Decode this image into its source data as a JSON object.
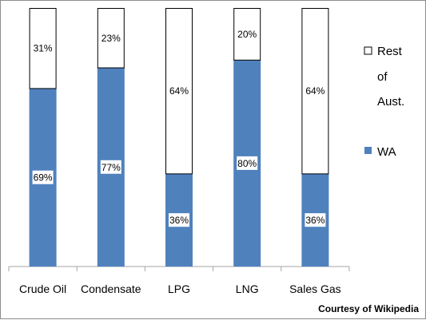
{
  "chart_data": {
    "type": "bar",
    "stacked": true,
    "percent_stacked": true,
    "categories": [
      "Crude Oil",
      "Condensate",
      "LPG",
      "LNG",
      "Sales Gas"
    ],
    "series": [
      {
        "name": "WA",
        "values": [
          69,
          77,
          36,
          80,
          36
        ],
        "labels": [
          "69%",
          "77%",
          "36%",
          "80%",
          "36%"
        ]
      },
      {
        "name": "Rest of Aust.",
        "values": [
          31,
          23,
          64,
          20,
          64
        ],
        "labels": [
          "31%",
          "23%",
          "64%",
          "20%",
          "64%"
        ]
      }
    ],
    "legend_position": "right",
    "grid": false
  },
  "colors": {
    "wa": "#4f81bd",
    "rest": "#ffffff",
    "rest_outline": "#000000",
    "axis": "#a6a6a6"
  },
  "credit": "Courtesy of Wikipedia"
}
